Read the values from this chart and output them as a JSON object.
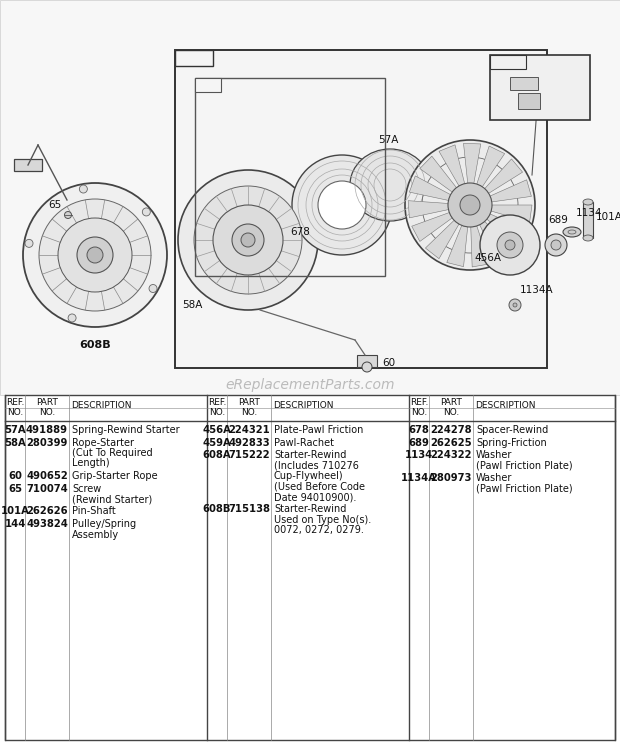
{
  "bg_color": "#ffffff",
  "watermark": "eReplacementParts.com",
  "watermark_color": "#bbbbbb",
  "border_color": "#333333",
  "text_color": "#111111",
  "diagram_bg": "#ffffff",
  "table_cols": [
    [
      [
        "57A",
        "491889",
        "Spring-Rewind Starter"
      ],
      [
        "58A",
        "280399",
        "Rope-Starter\n(Cut To Required\nLength)"
      ],
      [
        "60",
        "490652",
        "Grip-Starter Rope"
      ],
      [
        "65",
        "710074",
        "Screw\n(Rewind Starter)"
      ],
      [
        "101A",
        "262626",
        "Pin-Shaft"
      ],
      [
        "144",
        "493824",
        "Pulley/Spring\nAssembly"
      ]
    ],
    [
      [
        "456A",
        "224321",
        "Plate-Pawl Friction"
      ],
      [
        "459A",
        "492833",
        "Pawl-Rachet"
      ],
      [
        "608A",
        "715222",
        "Starter-Rewind\n(Includes 710276\nCup-Flywheel)\n(Used Before Code\nDate 94010900)."
      ],
      [
        "608B",
        "715138",
        "Starter-Rewind\nUsed on Type No(s).\n0072, 0272, 0279."
      ]
    ],
    [
      [
        "678",
        "224278",
        "Spacer-Rewind"
      ],
      [
        "689",
        "262625",
        "Spring-Friction"
      ],
      [
        "1134",
        "224322",
        "Washer\n(Pawl Friction Plate)"
      ],
      [
        "1134A",
        "280973",
        "Washer\n(Pawl Friction Plate)"
      ]
    ]
  ]
}
